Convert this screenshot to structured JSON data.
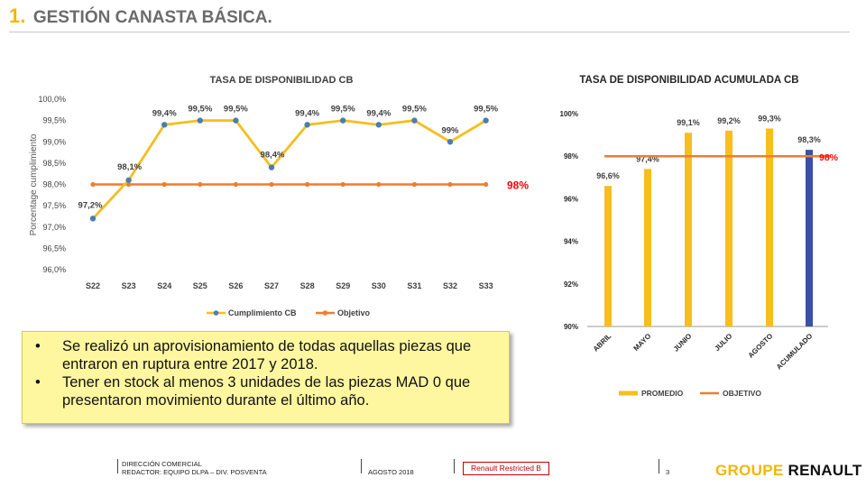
{
  "header": {
    "number": "1.",
    "title": "GESTIÓN CANASTA BÁSICA."
  },
  "chart_data": [
    {
      "type": "line",
      "title": "TASA DE DISPONIBILIDAD CB",
      "ylabel": "Porcentage cumplimiento",
      "xlabel": "",
      "categories": [
        "S22",
        "S23",
        "S24",
        "S25",
        "S26",
        "S27",
        "S28",
        "S29",
        "S30",
        "S31",
        "S32",
        "S33"
      ],
      "series": [
        {
          "name": "Cumplimiento CB",
          "values": [
            97.2,
            98.1,
            99.4,
            99.5,
            99.5,
            98.4,
            99.4,
            99.5,
            99.4,
            99.5,
            99.0,
            99.5
          ],
          "labels": [
            "97,2%",
            "98,1%",
            "99,4%",
            "99,5%",
            "99,5%",
            "98,4%",
            "99,4%",
            "99,5%",
            "99,4%",
            "99,5%",
            "99%",
            "99,5%"
          ]
        },
        {
          "name": "Objetivo",
          "values": [
            98,
            98,
            98,
            98,
            98,
            98,
            98,
            98,
            98,
            98,
            98,
            98
          ]
        }
      ],
      "objective_label": "98%",
      "ylim": [
        96.0,
        100.0
      ],
      "yticks": [
        96.0,
        96.5,
        97.0,
        97.5,
        98.0,
        98.5,
        99.0,
        99.5,
        100.0
      ],
      "ytick_labels": [
        "96,0%",
        "96,5%",
        "97,0%",
        "97,5%",
        "98,0%",
        "98,5%",
        "99,0%",
        "99,5%",
        "100,0%"
      ],
      "legend_position": "bottom",
      "colors": {
        "line": "#f6be1e",
        "marker": "#4a7eae",
        "objective": "#ed7d31",
        "objective_label": "#ff0000"
      }
    },
    {
      "type": "bar",
      "title": "TASA DE DISPONIBILIDAD ACUMULADA CB",
      "categories": [
        "ABRIL",
        "MAYO",
        "JUNIO",
        "JULIO",
        "AGOSTO",
        "ACUMULADO"
      ],
      "series": [
        {
          "name": "PROMEDIO",
          "values": [
            96.6,
            97.4,
            99.1,
            99.2,
            99.3,
            98.3
          ],
          "labels": [
            "96,6%",
            "97,4%",
            "99,1%",
            "99,2%",
            "99,3%",
            "98,3%"
          ]
        },
        {
          "name": "OBJETIVO",
          "values": [
            98,
            98,
            98,
            98,
            98,
            98
          ]
        }
      ],
      "objective_label": "98%",
      "ylim": [
        90,
        100
      ],
      "yticks": [
        90,
        92,
        94,
        96,
        98,
        100
      ],
      "ytick_labels": [
        "90%",
        "92%",
        "94%",
        "96%",
        "98%",
        "100%"
      ],
      "legend_position": "bottom",
      "colors": {
        "bar": "#f6be1e",
        "bar_accumulated": "#3a4fa6",
        "objective": "#ed7d31",
        "objective_label": "#ff0000"
      }
    }
  ],
  "notes": [
    {
      "bullet": "•",
      "text": "Se realizó un aprovisionamiento de todas aquellas piezas que entraron en ruptura entre 2017 y 2018."
    },
    {
      "bullet": "•",
      "text": "Tener en stock al menos 3 unidades de las piezas MAD 0 que presentaron movimiento durante el último año."
    }
  ],
  "footer": {
    "line1": "DIRECCIÓN COMERCIAL",
    "line2": "REDACTOR: EQUIPO DLPA – DIV. POSVENTA",
    "date": "AGOSTO 2018",
    "classification": "Renault Restricted B",
    "page": "3",
    "brand_a": "GROUPE",
    "brand_b": "RENAULT"
  }
}
